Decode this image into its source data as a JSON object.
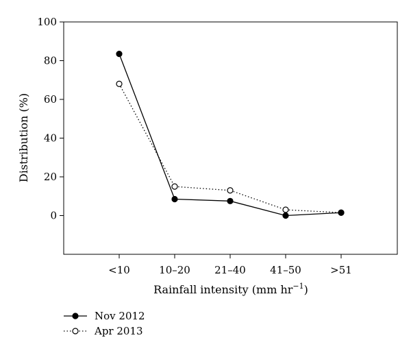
{
  "chart_data": {
    "type": "line",
    "categories": [
      "<10",
      "10–20",
      "21–40",
      "41–50",
      ">51"
    ],
    "xlabel": "Rainfall intensity (mm hr",
    "xlabel_sup": "−1",
    "xlabel_close": ")",
    "ylabel": "Distribution (%)",
    "ylim": [
      -20,
      100
    ],
    "yticks": [
      0,
      20,
      40,
      60,
      80,
      100
    ],
    "ytick_labels": [
      "0",
      "20",
      "40",
      "60",
      "80",
      "100"
    ],
    "grid": false,
    "legend_position": "bottom-left",
    "series": [
      {
        "name": "Nov 2012",
        "values": [
          83.5,
          8.5,
          7.5,
          0.0,
          1.5
        ],
        "style": "solid",
        "marker": "filled-circle",
        "color": "#000000"
      },
      {
        "name": "Apr 2013",
        "values": [
          68.0,
          15.0,
          13.0,
          3.0,
          1.5
        ],
        "style": "dotted",
        "marker": "open-circle",
        "color": "#000000"
      }
    ]
  }
}
